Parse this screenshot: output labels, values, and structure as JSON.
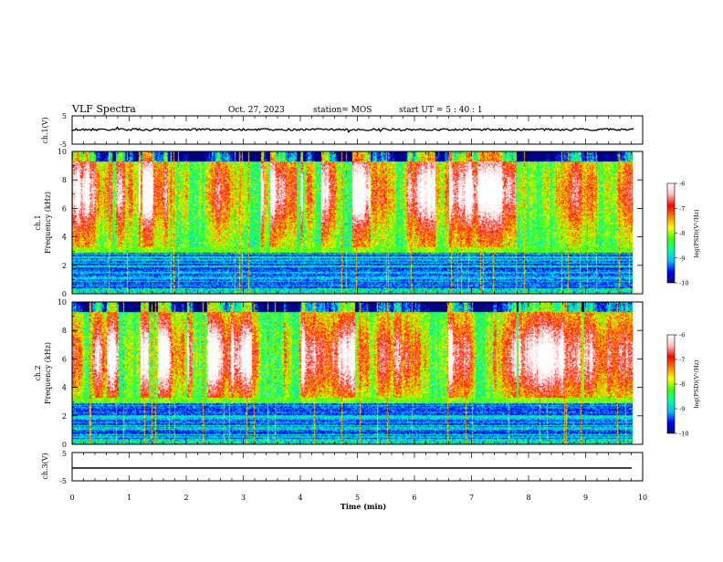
{
  "header": {
    "title": "VLF Spectra",
    "date": "Oct. 27, 2023",
    "station": "station= MOS",
    "start": "start UT =  5 : 40 : 1"
  },
  "chart_data": {
    "type": "heatmap",
    "x_axis": {
      "label": "Time (min)",
      "range": [
        0,
        10
      ],
      "ticks": [
        "0",
        "1",
        "2",
        "3",
        "4",
        "5",
        "6",
        "7",
        "8",
        "9",
        "10"
      ],
      "data_end": 9.85
    },
    "panels": [
      {
        "id": "ch1-waveform",
        "ylabel": "ch.1(V)",
        "ylim": [
          -5,
          5
        ],
        "ticks": [
          "5",
          "-5"
        ],
        "trace_level": 0,
        "type": "line"
      },
      {
        "id": "ch1-spectrogram",
        "ylabel_top": "ch.1",
        "ylabel": "Frequency (kHz)",
        "ylim": [
          0,
          10
        ],
        "ticks": [
          "0",
          "2",
          "4",
          "6",
          "8",
          "10"
        ],
        "seed": 7
      },
      {
        "id": "ch2-spectrogram",
        "ylabel_top": "ch.2",
        "ylabel": "Frequency (kHz)",
        "ylim": [
          0,
          10
        ],
        "ticks": [
          "0",
          "2",
          "4",
          "6",
          "8",
          "10"
        ],
        "seed": 23
      },
      {
        "id": "ch3-waveform",
        "ylabel": "ch.3(V)",
        "ylim": [
          -5,
          5
        ],
        "ticks": [
          "5",
          "-5"
        ],
        "trace_level": 0,
        "type": "line"
      }
    ],
    "colorbar": {
      "label": "log(PSD)(V²/Hz)",
      "range": [
        -10,
        -6
      ],
      "ticks": [
        "-6",
        "-7",
        "-8",
        "-9",
        "-10"
      ],
      "colormap": [
        "#000080",
        "#0000ff",
        "#00c0ff",
        "#00ffa0",
        "#40ff00",
        "#ffff00",
        "#ff8000",
        "#ff0000",
        "#ffc0c0",
        "#ffffff"
      ]
    }
  }
}
